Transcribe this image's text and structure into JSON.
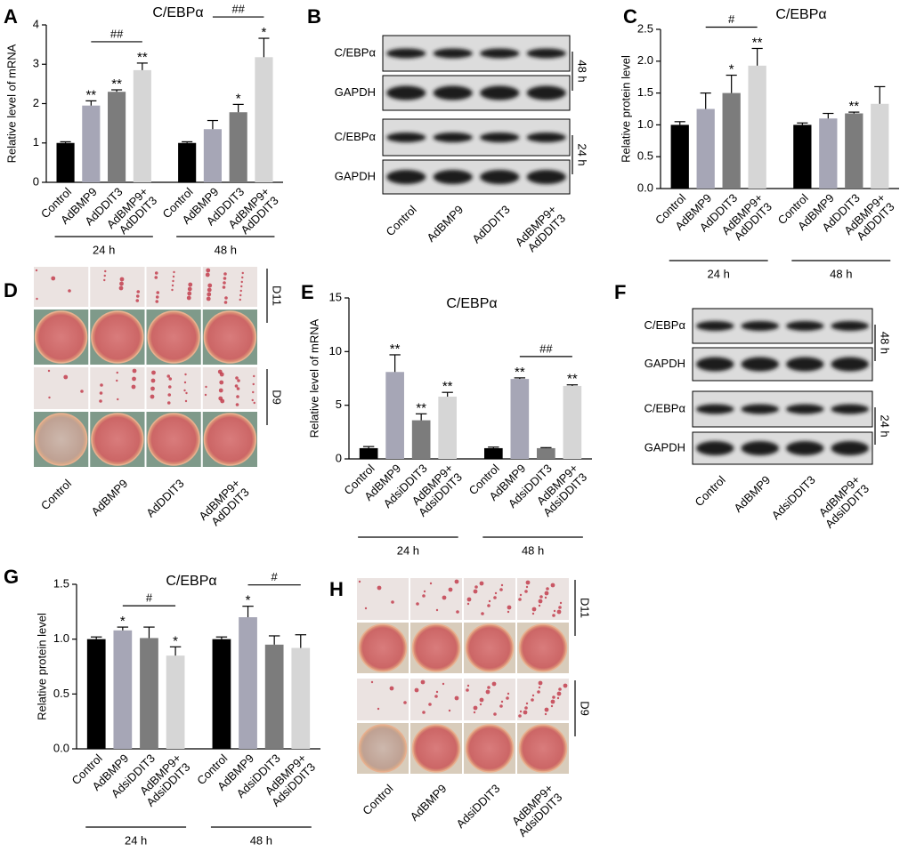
{
  "chart_data": [
    {
      "type": "bar",
      "label": "A",
      "title": "C/EBPα",
      "y_label": "Relative level of mRNA",
      "categories": [
        "Control",
        "AdBMP9",
        "AdDDIT3",
        "AdBMP9+\nAdDDIT3",
        "Control",
        "AdBMP9",
        "AdDDIT3",
        "AdBMP9+\nAdDDIT3"
      ],
      "values": [
        1.0,
        1.95,
        2.3,
        2.85,
        1.0,
        1.35,
        1.78,
        3.18
      ],
      "errors": [
        0.03,
        0.12,
        0.05,
        0.18,
        0.03,
        0.22,
        0.2,
        0.48
      ],
      "annotations": [
        null,
        "**",
        "**",
        "**",
        null,
        null,
        "*",
        "*"
      ],
      "groups": [
        "24 h",
        "48 h"
      ],
      "brackets": [
        {
          "label": "##",
          "from": 1,
          "to": 3
        },
        {
          "label": "##",
          "from": 5,
          "to": 7
        }
      ],
      "colors": [
        "#000000",
        "#a6a6b6",
        "#7c7c7c",
        "#d6d6d6"
      ],
      "ylim": [
        0,
        4
      ],
      "yticks": [
        0,
        1,
        2,
        3,
        4
      ]
    },
    {
      "type": "bar",
      "label": "C",
      "title": "C/EBPα",
      "y_label": "Relative protein level",
      "categories": [
        "Control",
        "AdBMP9",
        "AdDDIT3",
        "AdBMP9+\nAdDDIT3",
        "Control",
        "AdBMP9",
        "AdDDIT3",
        "AdBMP9+\nAdDDIT3"
      ],
      "values": [
        1.0,
        1.25,
        1.5,
        1.93,
        1.0,
        1.1,
        1.18,
        1.33
      ],
      "errors": [
        0.05,
        0.25,
        0.28,
        0.27,
        0.03,
        0.08,
        0.02,
        0.27
      ],
      "annotations": [
        null,
        null,
        "*",
        "**",
        null,
        null,
        "**",
        null
      ],
      "groups": [
        "24 h",
        "48 h"
      ],
      "brackets": [
        {
          "label": "#",
          "from": 1,
          "to": 3
        }
      ],
      "colors": [
        "#000000",
        "#a6a6b6",
        "#7c7c7c",
        "#d6d6d6"
      ],
      "ylim": [
        0,
        2.5
      ],
      "yticks": [
        {
          "value": 0,
          "label": "0.0"
        },
        0.5,
        {
          "value": 1,
          "label": "1.0"
        },
        1.5,
        {
          "value": 2,
          "label": "2.0"
        },
        2.5
      ]
    },
    {
      "type": "bar",
      "label": "E",
      "title": "C/EBPα",
      "y_label": "Relative level of mRNA",
      "categories": [
        "Control",
        "AdBMP9",
        "AdsiDDIT3",
        "AdBMP9+\nAdsiDDIT3",
        "Control",
        "AdBMP9",
        "AdsiDDIT3",
        "AdBMP9+\nAdsiDDIT3"
      ],
      "values": [
        1.0,
        8.1,
        3.6,
        5.8,
        1.0,
        7.45,
        1.0,
        6.8
      ],
      "errors": [
        0.15,
        1.6,
        0.6,
        0.4,
        0.1,
        0.1,
        0.05,
        0.1
      ],
      "annotations": [
        null,
        "**",
        "**",
        "**",
        null,
        "**",
        null,
        "**"
      ],
      "groups": [
        "24 h",
        "48 h"
      ],
      "brackets": [
        {
          "label": "##",
          "from": 5,
          "to": 7
        }
      ],
      "colors": [
        "#000000",
        "#a6a6b6",
        "#7c7c7c",
        "#d6d6d6"
      ],
      "ylim": [
        0,
        15
      ],
      "yticks": [
        0,
        5,
        10,
        15
      ]
    },
    {
      "type": "bar",
      "label": "G",
      "title": "C/EBPα",
      "y_label": "Relative protein level",
      "categories": [
        "Control",
        "AdBMP9",
        "AdsiDDIT3",
        "AdBMP9+\nAdsiDDIT3",
        "Control",
        "AdBMP9",
        "AdsiDDIT3",
        "AdBMP9+\nAdsiDDIT3"
      ],
      "values": [
        1.0,
        1.08,
        1.01,
        0.85,
        1.0,
        1.2,
        0.95,
        0.92
      ],
      "errors": [
        0.02,
        0.03,
        0.1,
        0.08,
        0.02,
        0.1,
        0.08,
        0.12
      ],
      "annotations": [
        null,
        "*",
        null,
        "*",
        null,
        "*",
        null,
        null
      ],
      "groups": [
        "24 h",
        "48 h"
      ],
      "brackets": [
        {
          "label": "#",
          "from": 1,
          "to": 3
        },
        {
          "label": "#",
          "from": 5,
          "to": 7
        }
      ],
      "colors": [
        "#000000",
        "#a6a6b6",
        "#7c7c7c",
        "#d6d6d6"
      ],
      "ylim": [
        0,
        1.5
      ],
      "yticks": [
        {
          "value": 0,
          "label": "0.0"
        },
        0.5,
        {
          "value": 1,
          "label": "1.0"
        },
        1.5
      ]
    }
  ],
  "blots": [
    {
      "label": "B",
      "rows": [
        "C/EBPα",
        "GAPDH",
        "C/EBPα",
        "GAPDH"
      ],
      "times": [
        "48 h",
        "24 h"
      ],
      "lanes": [
        "Control",
        "AdBMP9",
        "AdDDIT3",
        "AdBMP9+\nAdDDIT3"
      ]
    },
    {
      "label": "F",
      "rows": [
        "C/EBPα",
        "GAPDH",
        "C/EBPα",
        "GAPDH"
      ],
      "times": [
        "48 h",
        "24 h"
      ],
      "lanes": [
        "Control",
        "AdBMP9",
        "AdsiDDIT3",
        "AdBMP9+\nAdsiDDIT3"
      ]
    }
  ],
  "stains": [
    {
      "label": "D",
      "days": [
        "D11",
        "D9"
      ],
      "lanes": [
        "Control",
        "AdBMP9",
        "AdDDIT3",
        "AdBMP9+\nAdDDIT3"
      ]
    },
    {
      "label": "H",
      "days": [
        "D11",
        "D9"
      ],
      "lanes": [
        "Control",
        "AdBMP9",
        "AdsiDDIT3",
        "AdBMP9+\nAdsiDDIT3"
      ]
    }
  ]
}
